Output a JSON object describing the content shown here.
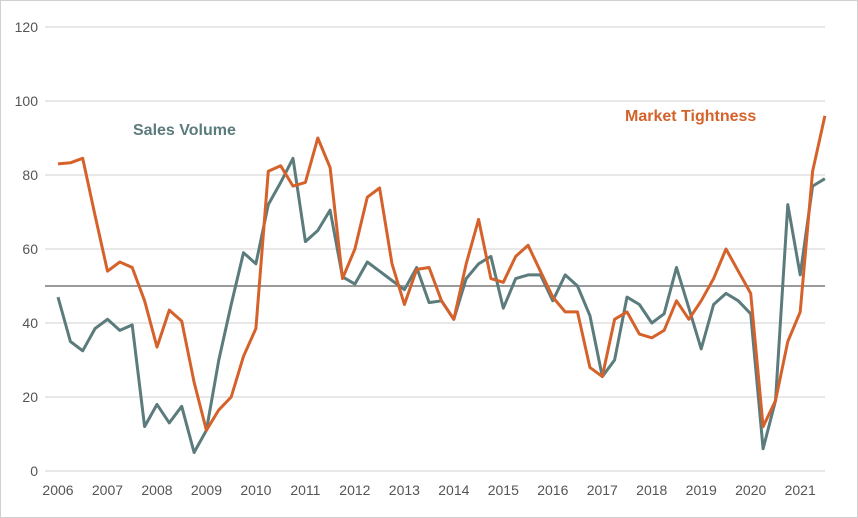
{
  "chart_data": {
    "type": "line",
    "title": "",
    "xlabel": "",
    "ylabel": "",
    "ylim": [
      0,
      120
    ],
    "yticks": [
      0,
      20,
      40,
      60,
      80,
      100,
      120
    ],
    "x_tick_labels": [
      "2006",
      "2007",
      "2008",
      "2009",
      "2010",
      "2011",
      "2012",
      "2013",
      "2014",
      "2015",
      "2016",
      "2017",
      "2018",
      "2019",
      "2020",
      "2021"
    ],
    "x_frequency": "quarterly, 2006 Q1 to 2021 Q3",
    "grid": true,
    "reference_line": 50,
    "series": [
      {
        "name": "Sales Volume",
        "color": "#5b7b7c",
        "values": [
          47,
          35,
          32.5,
          38.5,
          41,
          38,
          39.5,
          12,
          18,
          13,
          17.5,
          5,
          11,
          30,
          45,
          59,
          56,
          72,
          78,
          84.5,
          62,
          65,
          70.5,
          52.5,
          50.5,
          56.5,
          54,
          51.5,
          49,
          55,
          45.5,
          46,
          41,
          52,
          56,
          58,
          44,
          52,
          53,
          53,
          46,
          53,
          50,
          42,
          25.5,
          30,
          47,
          45,
          40,
          42.5,
          55,
          44,
          33,
          45,
          48,
          46,
          42.5,
          6,
          19,
          72,
          53,
          77,
          79
        ]
      },
      {
        "name": "Market Tightness",
        "color": "#d5622b",
        "values": [
          83,
          83.3,
          84.5,
          69,
          54,
          56.5,
          55,
          46,
          33.5,
          43.5,
          40.5,
          24,
          11,
          16.5,
          20,
          31,
          38.5,
          81,
          82.5,
          77,
          78,
          90,
          82,
          52,
          60,
          74,
          76.5,
          56,
          45,
          54.5,
          55,
          46,
          41,
          56,
          68,
          52,
          51,
          58,
          61,
          54,
          47,
          43,
          43,
          28,
          25.5,
          41,
          43,
          37,
          36,
          38,
          46,
          41,
          46,
          52,
          60,
          54,
          48,
          12,
          19,
          35,
          43,
          81,
          96
        ]
      }
    ]
  }
}
